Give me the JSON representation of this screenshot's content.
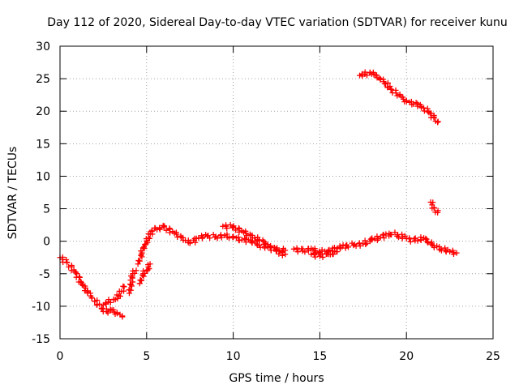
{
  "chart_data": {
    "type": "scatter",
    "title": "Day 112 of 2020, Sidereal Day-to-day VTEC variation (SDTVAR) for receiver kunu",
    "xlabel": "GPS time / hours",
    "ylabel": "SDTVAR / TECUs",
    "xlim": [
      0,
      25
    ],
    "ylim": [
      -15,
      30
    ],
    "xticks": [
      0,
      5,
      10,
      15,
      20,
      25
    ],
    "yticks": [
      -15,
      -10,
      -5,
      0,
      5,
      10,
      15,
      20,
      25,
      30
    ],
    "grid": true,
    "marker": "+",
    "colors": {
      "series": "#ff0000",
      "grid": "#a0a0a0",
      "axis": "#000000"
    },
    "series": [
      {
        "name": "segment-1",
        "x": [
          0.0,
          0.4,
          0.8,
          1.2,
          1.6,
          2.0,
          2.4,
          2.7,
          3.0,
          3.3,
          3.6
        ],
        "y": [
          -2.5,
          -3.3,
          -4.4,
          -6.2,
          -7.8,
          -9.2,
          -10.3,
          -10.8,
          -10.6,
          -11.1,
          -11.5
        ]
      },
      {
        "name": "segment-2",
        "x": [
          2.5,
          2.8,
          3.1,
          3.4,
          3.7
        ],
        "y": [
          -9.8,
          -9.3,
          -9.0,
          -8.4,
          -7.0
        ]
      },
      {
        "name": "segment-3",
        "x": [
          4.0,
          4.2,
          4.4
        ],
        "y": [
          -8.0,
          -5.0,
          -4.5
        ]
      },
      {
        "name": "segment-4",
        "x": [
          4.6,
          4.8,
          5.0,
          5.2
        ],
        "y": [
          -6.5,
          -5.0,
          -4.5,
          -3.5
        ]
      },
      {
        "name": "segment-5",
        "x": [
          4.5,
          4.7,
          4.9,
          5.1,
          5.3,
          5.5
        ],
        "y": [
          -3.5,
          -2.0,
          -0.5,
          0.5,
          1.5,
          2.0
        ]
      },
      {
        "name": "segment-6",
        "x": [
          5.6,
          6.0,
          6.5,
          7.0,
          7.5,
          8.0,
          8.5,
          9.0,
          9.5,
          10.0,
          10.5,
          11.0,
          11.5,
          12.0,
          12.5,
          13.0
        ],
        "y": [
          1.8,
          2.2,
          1.5,
          0.6,
          -0.3,
          0.5,
          0.8,
          0.7,
          0.9,
          0.6,
          0.2,
          0.1,
          -0.6,
          -0.9,
          -1.3,
          -1.4
        ]
      },
      {
        "name": "segment-7",
        "x": [
          9.4,
          10.0,
          10.5,
          11.0,
          11.5,
          12.0
        ],
        "y": [
          2.3,
          2.2,
          1.6,
          0.9,
          0.2,
          -0.5
        ]
      },
      {
        "name": "segment-8",
        "x": [
          12.0,
          12.5,
          13.0
        ],
        "y": [
          -0.8,
          -1.5,
          -2.0
        ]
      },
      {
        "name": "segment-9",
        "x": [
          13.5,
          14.0,
          14.5,
          15.0,
          15.5,
          16.0,
          16.5,
          17.0,
          17.5,
          18.0,
          18.5,
          19.0,
          19.5,
          20.0,
          20.5,
          21.0,
          21.5,
          22.0,
          22.5,
          22.9
        ],
        "y": [
          -1.2,
          -1.5,
          -1.1,
          -1.7,
          -1.4,
          -1.1,
          -0.7,
          -0.5,
          -0.4,
          0.2,
          0.6,
          1.2,
          1.0,
          0.4,
          0.1,
          0.5,
          -0.6,
          -1.2,
          -1.6,
          -1.8
        ]
      },
      {
        "name": "segment-10",
        "x": [
          14.5,
          15.0,
          15.5,
          16.0
        ],
        "y": [
          -2.0,
          -2.3,
          -2.0,
          -1.6
        ]
      },
      {
        "name": "segment-11",
        "x": [
          17.3,
          17.6,
          17.9,
          18.2,
          18.5,
          18.8,
          19.1,
          19.4,
          19.7,
          20.0,
          20.4,
          20.8,
          21.0,
          21.3,
          21.6,
          21.8
        ],
        "y": [
          25.5,
          25.7,
          25.9,
          25.6,
          25.0,
          24.2,
          23.4,
          22.8,
          22.2,
          21.5,
          21.1,
          21.0,
          20.5,
          19.8,
          19.0,
          18.3
        ]
      },
      {
        "name": "segment-12",
        "x": [
          21.4,
          21.6,
          21.8
        ],
        "y": [
          6.0,
          5.1,
          4.4
        ]
      }
    ]
  }
}
